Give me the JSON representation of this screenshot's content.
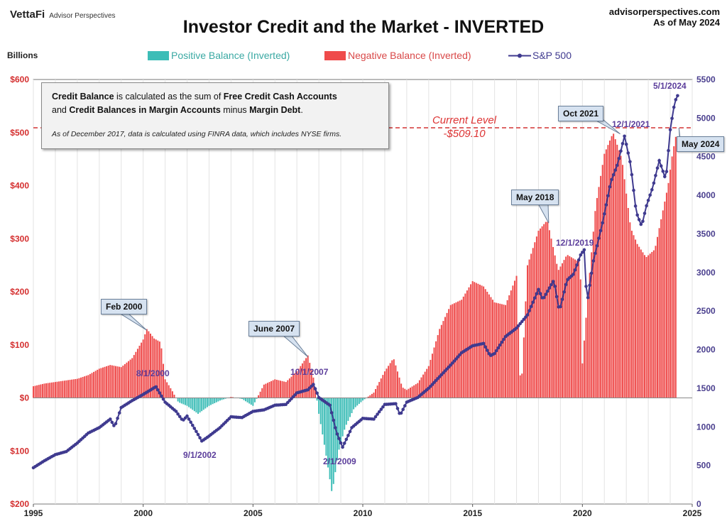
{
  "header": {
    "logo": "VettaFi",
    "logo_sub": "Advisor Perspectives",
    "site": "advisorperspectives.com",
    "date": "As of May 2024",
    "title": "Investor Credit and the Market - INVERTED",
    "units": "Billions"
  },
  "legend": {
    "positive": "Positive Balance (Inverted)",
    "negative": "Negative Balance (Inverted)",
    "sp500": "S&P 500"
  },
  "infobox": {
    "p1": "Credit Balance",
    "p2": " is calculated as the sum of ",
    "p3": "Free Credit Cash Accounts",
    "p4": "and ",
    "p5": "Credit Balances in Margin Accounts",
    "p6": " minus ",
    "p7": "Margin Debt",
    "p8": ".",
    "note": "As of December 2017, data is calculated using FINRA data, which includes NYSE firms."
  },
  "current_level": {
    "line1": "Current Level",
    "line2": "-$509.10"
  },
  "callouts": {
    "feb2000": "Feb 2000",
    "june2007": "June 2007",
    "may2018": "May 2018",
    "oct2021": "Oct 2021",
    "may2024": "May 2024"
  },
  "annotations": {
    "a1": "8/1/2000",
    "a2": "9/1/2002",
    "a3": "10/1/2007",
    "a4": "2/1/2009",
    "a5": "12/1/2019",
    "a6": "12/1/2021",
    "a7": "5/1/2024"
  },
  "colors": {
    "positive": "#3dbdb7",
    "negative": "#ef4b4b",
    "sp500": "#3f3a8f",
    "current_line": "#d33333",
    "left_axis": "#d42e2e",
    "right_axis": "#4a3f8e"
  },
  "chart_data": {
    "type": "bar",
    "title": "Investor Credit and the Market - INVERTED",
    "ylabel": "Billions",
    "xlim": [
      1995,
      2025
    ],
    "ylim_left": [
      -200,
      600
    ],
    "ylim_right": [
      0,
      5500
    ],
    "yticks_left": [
      {
        "v": 600,
        "label": "$600"
      },
      {
        "v": 500,
        "label": "$500"
      },
      {
        "v": 400,
        "label": "$400"
      },
      {
        "v": 300,
        "label": "$300"
      },
      {
        "v": 200,
        "label": "$200"
      },
      {
        "v": 100,
        "label": "$100"
      },
      {
        "v": 0,
        "label": "$0"
      },
      {
        "v": -100,
        "label": "$100"
      },
      {
        "v": -200,
        "label": "$200"
      }
    ],
    "yticks_right": [
      5500,
      5000,
      4500,
      4000,
      3500,
      3000,
      2500,
      2000,
      1500,
      1000,
      500,
      0
    ],
    "xticks": [
      1995,
      2000,
      2005,
      2010,
      2015,
      2020,
      2025
    ],
    "current_level": 509.1,
    "series": [
      {
        "name": "Credit Balance (Inverted)",
        "points": [
          [
            1995.0,
            22
          ],
          [
            1995.5,
            27
          ],
          [
            1996.0,
            30
          ],
          [
            1996.5,
            33
          ],
          [
            1997.0,
            36
          ],
          [
            1997.5,
            43
          ],
          [
            1998.0,
            55
          ],
          [
            1998.5,
            62
          ],
          [
            1999.0,
            58
          ],
          [
            1999.5,
            75
          ],
          [
            2000.0,
            110
          ],
          [
            2000.17,
            130
          ],
          [
            2000.5,
            112
          ],
          [
            2000.8,
            105
          ],
          [
            2001.0,
            35
          ],
          [
            2001.3,
            15
          ],
          [
            2001.6,
            -8
          ],
          [
            2002.0,
            -15
          ],
          [
            2002.5,
            -30
          ],
          [
            2003.0,
            -15
          ],
          [
            2003.5,
            -5
          ],
          [
            2004.0,
            2
          ],
          [
            2004.5,
            -2
          ],
          [
            2005.0,
            -15
          ],
          [
            2005.5,
            25
          ],
          [
            2006.0,
            35
          ],
          [
            2006.5,
            30
          ],
          [
            2007.0,
            50
          ],
          [
            2007.5,
            80
          ],
          [
            2007.8,
            30
          ],
          [
            2008.0,
            -30
          ],
          [
            2008.3,
            -100
          ],
          [
            2008.6,
            -180
          ],
          [
            2008.9,
            -100
          ],
          [
            2009.2,
            -55
          ],
          [
            2009.6,
            -20
          ],
          [
            2010.0,
            -5
          ],
          [
            2010.5,
            10
          ],
          [
            2011.0,
            50
          ],
          [
            2011.4,
            75
          ],
          [
            2011.8,
            20
          ],
          [
            2012.0,
            15
          ],
          [
            2012.5,
            28
          ],
          [
            2013.0,
            60
          ],
          [
            2013.5,
            130
          ],
          [
            2014.0,
            175
          ],
          [
            2014.5,
            185
          ],
          [
            2015.0,
            220
          ],
          [
            2015.5,
            210
          ],
          [
            2016.0,
            180
          ],
          [
            2016.5,
            175
          ],
          [
            2017.0,
            230
          ],
          [
            2017.2,
            5
          ],
          [
            2017.5,
            250
          ],
          [
            2018.0,
            315
          ],
          [
            2018.4,
            335
          ],
          [
            2018.9,
            240
          ],
          [
            2019.3,
            270
          ],
          [
            2019.9,
            255
          ],
          [
            2020.0,
            65
          ],
          [
            2020.3,
            220
          ],
          [
            2020.6,
            360
          ],
          [
            2021.0,
            460
          ],
          [
            2021.4,
            500
          ],
          [
            2021.8,
            450
          ],
          [
            2022.2,
            320
          ],
          [
            2022.5,
            290
          ],
          [
            2022.9,
            265
          ],
          [
            2023.3,
            280
          ],
          [
            2023.6,
            340
          ],
          [
            2023.9,
            400
          ],
          [
            2024.1,
            460
          ],
          [
            2024.33,
            509
          ]
        ]
      },
      {
        "name": "S&P 500",
        "points": [
          [
            1995.0,
            470
          ],
          [
            1995.5,
            560
          ],
          [
            1996.0,
            640
          ],
          [
            1996.5,
            680
          ],
          [
            1997.0,
            790
          ],
          [
            1997.5,
            920
          ],
          [
            1998.0,
            990
          ],
          [
            1998.5,
            1100
          ],
          [
            1998.7,
            1000
          ],
          [
            1999.0,
            1250
          ],
          [
            1999.5,
            1340
          ],
          [
            2000.0,
            1420
          ],
          [
            2000.58,
            1520
          ],
          [
            2001.0,
            1320
          ],
          [
            2001.5,
            1200
          ],
          [
            2001.8,
            1080
          ],
          [
            2002.0,
            1140
          ],
          [
            2002.5,
            900
          ],
          [
            2002.67,
            815
          ],
          [
            2003.0,
            880
          ],
          [
            2003.5,
            990
          ],
          [
            2004.0,
            1130
          ],
          [
            2004.5,
            1120
          ],
          [
            2005.0,
            1200
          ],
          [
            2005.5,
            1220
          ],
          [
            2006.0,
            1280
          ],
          [
            2006.5,
            1290
          ],
          [
            2007.0,
            1440
          ],
          [
            2007.5,
            1480
          ],
          [
            2007.75,
            1550
          ],
          [
            2008.0,
            1380
          ],
          [
            2008.5,
            1280
          ],
          [
            2008.8,
            930
          ],
          [
            2009.08,
            735
          ],
          [
            2009.5,
            990
          ],
          [
            2010.0,
            1110
          ],
          [
            2010.5,
            1100
          ],
          [
            2011.0,
            1290
          ],
          [
            2011.5,
            1300
          ],
          [
            2011.7,
            1150
          ],
          [
            2012.0,
            1320
          ],
          [
            2012.5,
            1380
          ],
          [
            2013.0,
            1500
          ],
          [
            2013.5,
            1650
          ],
          [
            2014.0,
            1800
          ],
          [
            2014.5,
            1960
          ],
          [
            2015.0,
            2050
          ],
          [
            2015.5,
            2080
          ],
          [
            2015.8,
            1920
          ],
          [
            2016.0,
            1950
          ],
          [
            2016.5,
            2170
          ],
          [
            2017.0,
            2280
          ],
          [
            2017.5,
            2450
          ],
          [
            2018.0,
            2780
          ],
          [
            2018.2,
            2650
          ],
          [
            2018.7,
            2900
          ],
          [
            2018.95,
            2500
          ],
          [
            2019.3,
            2900
          ],
          [
            2019.6,
            2980
          ],
          [
            2019.92,
            3230
          ],
          [
            2020.1,
            3300
          ],
          [
            2020.2,
            2580
          ],
          [
            2020.5,
            3150
          ],
          [
            2020.9,
            3620
          ],
          [
            2021.3,
            4180
          ],
          [
            2021.6,
            4400
          ],
          [
            2021.92,
            4770
          ],
          [
            2022.2,
            4390
          ],
          [
            2022.45,
            3780
          ],
          [
            2022.7,
            3600
          ],
          [
            2022.9,
            3850
          ],
          [
            2023.2,
            4100
          ],
          [
            2023.5,
            4450
          ],
          [
            2023.8,
            4200
          ],
          [
            2024.0,
            4850
          ],
          [
            2024.2,
            5200
          ],
          [
            2024.33,
            5300
          ],
          [
            2024.4,
            5100
          ]
        ]
      }
    ]
  }
}
